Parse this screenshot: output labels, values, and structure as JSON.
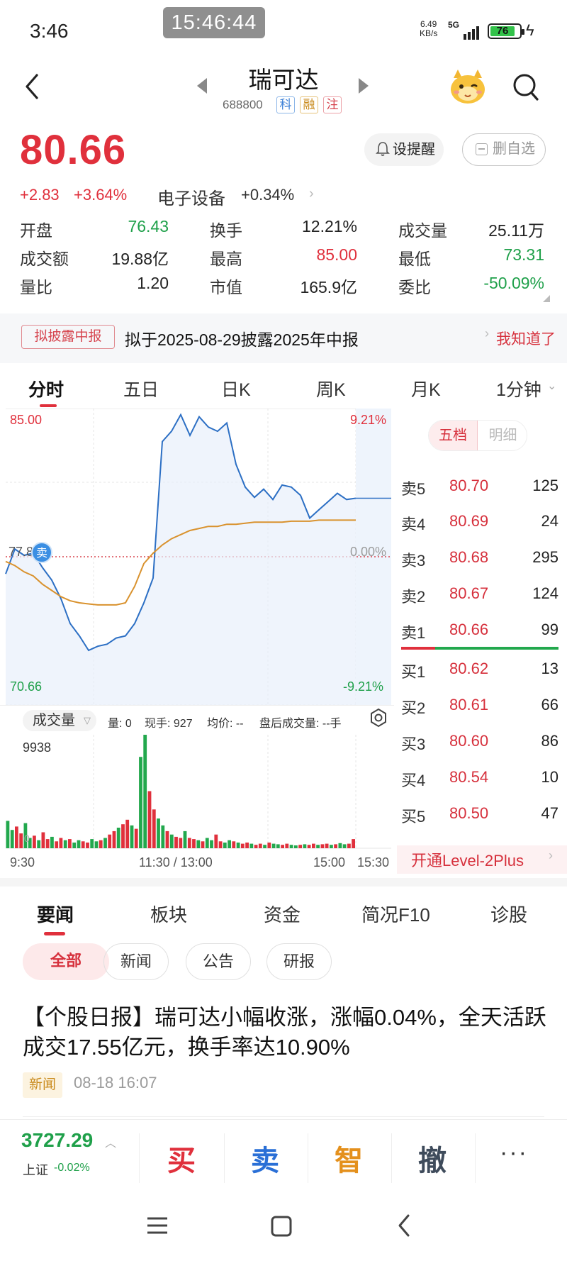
{
  "status_bar": {
    "time": "3:46",
    "clock_overlay": "15:46:44",
    "net_speed_value": "6.49",
    "net_speed_unit": "KB/s",
    "network": "5G",
    "battery": "76"
  },
  "header": {
    "stock_name": "瑞可达",
    "stock_code": "688800",
    "tags": [
      "科",
      "融",
      "注"
    ]
  },
  "quote": {
    "price": "80.66",
    "change": "+2.83",
    "change_pct": "+3.64%",
    "sector_name": "电子设备",
    "sector_change": "+0.34%",
    "alert_button": "设提醒",
    "remove_button": "删自选",
    "stats": [
      {
        "label": "开盘",
        "value": "76.43",
        "color": "#1fa04a"
      },
      {
        "label": "换手",
        "value": "12.21%",
        "color": "#222222"
      },
      {
        "label": "成交量",
        "value": "25.11万",
        "color": "#222222"
      },
      {
        "label": "成交额",
        "value": "19.88亿",
        "color": "#222222"
      },
      {
        "label": "最高",
        "value": "85.00",
        "color": "#e0303c"
      },
      {
        "label": "最低",
        "value": "73.31",
        "color": "#1fa04a"
      },
      {
        "label": "量比",
        "value": "1.20",
        "color": "#222222"
      },
      {
        "label": "市值",
        "value": "165.9亿",
        "color": "#222222"
      },
      {
        "label": "委比",
        "value": "-50.09%",
        "color": "#1fa04a"
      }
    ]
  },
  "notice": {
    "tag": "拟披露中报",
    "text": "拟于2025-08-29披露2025年中报",
    "ack": "我知道了"
  },
  "period_tabs": [
    "分时",
    "五日",
    "日K",
    "周K",
    "月K",
    "1分钟"
  ],
  "chart": {
    "price_high_label": "85.00",
    "price_low_label": "70.66",
    "pct_high_label": "9.21%",
    "pct_zero_label": "0.00%",
    "pct_low_label": "-9.21%",
    "marker": "卖",
    "marker_label": "77.8",
    "volume_selector": "成交量",
    "volume_info": [
      "量: 0",
      "现手: 927",
      "均价: --",
      "盘后成交量: --手"
    ],
    "volume_max": "9938",
    "volume_zero": "0",
    "time_labels": [
      "9:30",
      "11:30 / 13:00",
      "15:00",
      "15:30"
    ]
  },
  "chart_data": {
    "type": "line",
    "title": "",
    "ylim": [
      70.66,
      85.0
    ],
    "prev_close": 77.83,
    "high": 85.0,
    "low": 73.31,
    "last": 80.66,
    "series": [
      {
        "values": [
          77.0,
          78.2,
          77.9,
          78.0,
          77.3,
          76.7,
          75.8,
          74.6,
          74.0,
          73.3,
          73.5,
          73.6,
          73.9,
          74.0,
          74.6,
          75.6,
          76.8,
          83.4,
          83.9,
          84.7,
          83.7,
          84.6,
          84.1,
          83.9,
          84.3,
          82.3,
          81.2,
          80.7,
          81.1,
          80.6,
          81.3,
          81.2,
          80.8,
          79.7,
          80.1,
          80.5,
          80.9,
          80.6,
          80.66
        ]
      },
      {
        "values": [
          77.6,
          77.4,
          77.1,
          76.9,
          76.5,
          76.2,
          75.9,
          75.7,
          75.6,
          75.55,
          75.5,
          75.5,
          75.5,
          75.6,
          76.4,
          77.5,
          78.0,
          78.4,
          78.7,
          78.9,
          79.1,
          79.2,
          79.3,
          79.3,
          79.4,
          79.4,
          79.45,
          79.5,
          79.5,
          79.5,
          79.5,
          79.55,
          79.55,
          79.55,
          79.6,
          79.6,
          79.6,
          79.6,
          79.6
        ]
      }
    ],
    "volume": {
      "max": 9938,
      "values": [
        2400,
        1600,
        1900,
        1300,
        2200,
        900,
        1100,
        700,
        1400,
        800,
        1000,
        600,
        900,
        700,
        800,
        500,
        700,
        600,
        500,
        800,
        600,
        700,
        900,
        1200,
        1500,
        1800,
        2100,
        2500,
        2000,
        1700,
        8000,
        9938,
        5000,
        3400,
        2600,
        2000,
        1500,
        1200,
        1000,
        900,
        1500,
        900,
        800,
        700,
        600,
        900,
        700,
        1200,
        600,
        500,
        700,
        600,
        500,
        400,
        500,
        400,
        300,
        400,
        300,
        500,
        400,
        350,
        300,
        400,
        300,
        250,
        300,
        350,
        300,
        400,
        300,
        350,
        400,
        300,
        350,
        450,
        350,
        400,
        800
      ]
    }
  },
  "order_book": {
    "toggle": [
      "五档",
      "明细"
    ],
    "asks": [
      {
        "label": "卖5",
        "price": "80.70",
        "vol": "125"
      },
      {
        "label": "卖4",
        "price": "80.69",
        "vol": "24"
      },
      {
        "label": "卖3",
        "price": "80.68",
        "vol": "295"
      },
      {
        "label": "卖2",
        "price": "80.67",
        "vol": "124"
      },
      {
        "label": "卖1",
        "price": "80.66",
        "vol": "99"
      }
    ],
    "bids": [
      {
        "label": "买1",
        "price": "80.62",
        "vol": "13"
      },
      {
        "label": "买2",
        "price": "80.61",
        "vol": "66"
      },
      {
        "label": "买3",
        "price": "80.60",
        "vol": "86"
      },
      {
        "label": "买4",
        "price": "80.54",
        "vol": "10"
      },
      {
        "label": "买5",
        "price": "80.50",
        "vol": "47"
      }
    ],
    "level2": "开通Level-2Plus"
  },
  "news": {
    "tabs": [
      "要闻",
      "板块",
      "资金",
      "简况F10",
      "诊股"
    ],
    "chips": [
      "全部",
      "新闻",
      "公告",
      "研报"
    ],
    "headline": "【个股日报】瑞可达小幅收涨，涨幅0.04%，全天活跃成交17.55亿元，换手率达10.90%",
    "tag": "新闻",
    "time": "08-18 16:07"
  },
  "bottom_bar": {
    "index_value": "3727.29",
    "index_name": "上证",
    "index_change": "-0.02%",
    "actions": [
      "买",
      "卖",
      "智",
      "撤"
    ],
    "more": "···"
  },
  "colors": {
    "up": "#e0303c",
    "down": "#1fa04a",
    "price_line": "#2c6fc4",
    "avg_line": "#d9922e"
  }
}
